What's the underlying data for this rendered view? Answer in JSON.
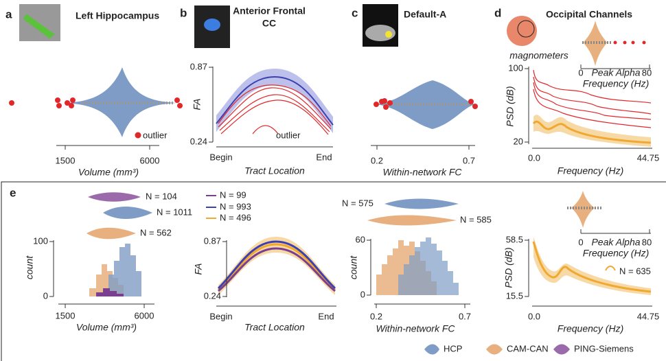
{
  "panels": {
    "a": {
      "letter": "a",
      "title": "Left Hippocampus",
      "annotation": "outlier",
      "x_label": "Volume (mm³)",
      "x_ticks": [
        "1500",
        "6000"
      ]
    },
    "b": {
      "letter": "b",
      "title_lines": [
        "Anterior Frontal",
        "CC"
      ],
      "y_label": "FA",
      "y_ticks": [
        "0.87",
        "0.24"
      ],
      "x_label": "Tract Location",
      "x_ticks": [
        "Begin",
        "End"
      ],
      "annotation": "outlier"
    },
    "c": {
      "letter": "c",
      "title": "Default-A",
      "x_label": "Within-network FC",
      "x_ticks": [
        "0.2",
        "0.7"
      ]
    },
    "d": {
      "letter": "d",
      "title": "Occipital Channels",
      "sensor_label": "magnometers",
      "inset_x_ticks": [
        "0",
        "80"
      ],
      "inset_label_lines": [
        "Peak Alpha",
        "Frequency (Hz)"
      ],
      "y_label": "PSD (dB)",
      "y_ticks": [
        "100",
        "20"
      ],
      "x_label": "Frequency (Hz)",
      "x_ticks": [
        "0.0",
        "44.75"
      ]
    },
    "e": {
      "letter": "e",
      "volume": {
        "violin_labels": [
          "N = 104",
          "N = 1011",
          "N = 562"
        ],
        "y_label": "count",
        "y_ticks": [
          "100",
          "0"
        ],
        "x_label": "Volume (mm³)",
        "x_ticks": [
          "1500",
          "6000"
        ]
      },
      "tract": {
        "legend": [
          "N = 99",
          "N = 993",
          "N = 496"
        ],
        "y_label": "FA",
        "y_ticks": [
          "0.87",
          "0.24"
        ],
        "x_label": "Tract Location",
        "x_ticks": [
          "Begin",
          "End"
        ]
      },
      "fc": {
        "violin_labels": [
          "N = 575",
          "N = 585"
        ],
        "y_label": "count",
        "y_ticks": [
          "60",
          "0"
        ],
        "x_label": "Within-network FC",
        "x_ticks": [
          "0.2",
          "0.7"
        ]
      },
      "psd": {
        "inset_x_ticks": [
          "0",
          "80"
        ],
        "inset_label_lines": [
          "Peak Alpha",
          "Frequency (Hz)"
        ],
        "legend": "N = 635",
        "y_label": "PSD (dB)",
        "y_ticks": [
          "58.5",
          "15.5"
        ],
        "x_label": "Frequency (Hz)",
        "x_ticks": [
          "0.0",
          "44.75"
        ]
      }
    }
  },
  "legend": [
    "HCP",
    "CAM-CAN",
    "PING-Siemens"
  ]
}
